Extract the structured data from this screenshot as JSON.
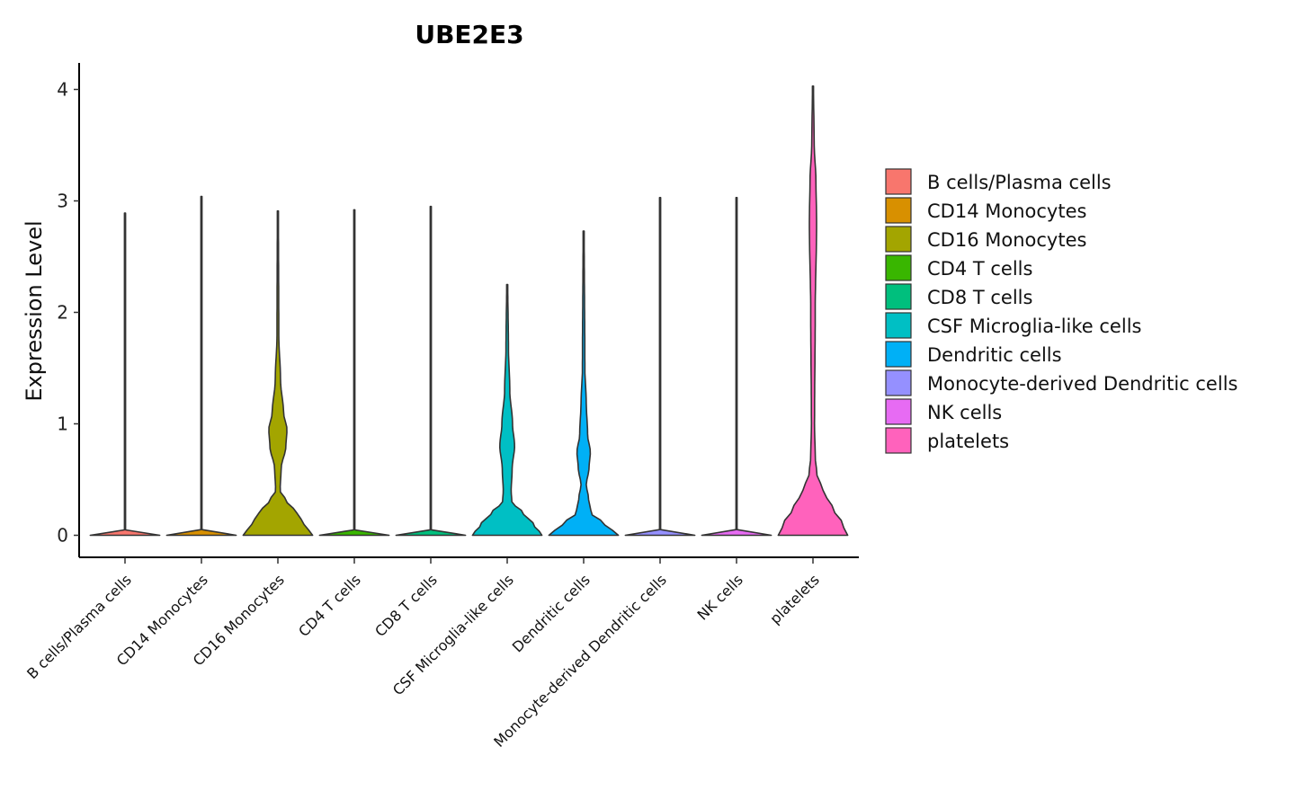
{
  "chart_data": {
    "type": "violin",
    "title": "UBE2E3",
    "xlabel": "",
    "ylabel": "Expression Level",
    "ylim": [
      -0.2,
      4.25
    ],
    "yticks": [
      0,
      1,
      2,
      3,
      4
    ],
    "grid": false,
    "legend_position": "right",
    "categories": [
      "B cells/Plasma cells",
      "CD14 Monocytes",
      "CD16 Monocytes",
      "CD4 T cells",
      "CD8 T cells",
      "CSF Microglia-like cells",
      "Dendritic cells",
      "Monocyte-derived Dendritic cells",
      "NK cells",
      "platelets"
    ],
    "colors": [
      "#F8766D",
      "#D89000",
      "#A3A500",
      "#39B600",
      "#00BF7D",
      "#00BFC4",
      "#00B0F6",
      "#9590FF",
      "#E76BF3",
      "#FF62BC"
    ],
    "max_values": [
      2.89,
      3.04,
      2.91,
      2.92,
      2.95,
      2.25,
      2.73,
      3.03,
      3.03,
      4.03
    ],
    "density_profiles": [
      [
        [
          0,
          1.0
        ],
        [
          0.02,
          0.0
        ],
        [
          2.89,
          0.0
        ]
      ],
      [
        [
          0,
          1.0
        ],
        [
          0.02,
          0.0
        ],
        [
          3.04,
          0.0
        ]
      ],
      [
        [
          0,
          1.0
        ],
        [
          0.1,
          0.75
        ],
        [
          0.2,
          0.55
        ],
        [
          0.3,
          0.25
        ],
        [
          0.4,
          0.05
        ],
        [
          0.6,
          0.08
        ],
        [
          0.8,
          0.22
        ],
        [
          0.95,
          0.25
        ],
        [
          1.1,
          0.15
        ],
        [
          1.4,
          0.06
        ],
        [
          1.8,
          0.01
        ],
        [
          2.91,
          0.0
        ]
      ],
      [
        [
          0,
          1.0
        ],
        [
          0.02,
          0.0
        ],
        [
          2.92,
          0.0
        ]
      ],
      [
        [
          0,
          1.0
        ],
        [
          0.02,
          0.0
        ],
        [
          2.95,
          0.0
        ]
      ],
      [
        [
          0,
          1.0
        ],
        [
          0.1,
          0.75
        ],
        [
          0.2,
          0.45
        ],
        [
          0.3,
          0.12
        ],
        [
          0.4,
          0.1
        ],
        [
          0.6,
          0.13
        ],
        [
          0.8,
          0.2
        ],
        [
          1.0,
          0.14
        ],
        [
          1.3,
          0.06
        ],
        [
          1.7,
          0.02
        ],
        [
          2.25,
          0.0
        ]
      ],
      [
        [
          0,
          1.0
        ],
        [
          0.1,
          0.6
        ],
        [
          0.2,
          0.2
        ],
        [
          0.35,
          0.12
        ],
        [
          0.45,
          0.06
        ],
        [
          0.6,
          0.14
        ],
        [
          0.75,
          0.18
        ],
        [
          0.9,
          0.1
        ],
        [
          1.2,
          0.06
        ],
        [
          1.5,
          0.02
        ],
        [
          2.73,
          0.0
        ]
      ],
      [
        [
          0,
          1.0
        ],
        [
          0.02,
          0.0
        ],
        [
          3.03,
          0.0
        ]
      ],
      [
        [
          0,
          1.0
        ],
        [
          0.02,
          0.0
        ],
        [
          3.03,
          0.0
        ]
      ],
      [
        [
          0,
          1.0
        ],
        [
          0.1,
          0.85
        ],
        [
          0.25,
          0.55
        ],
        [
          0.4,
          0.28
        ],
        [
          0.55,
          0.1
        ],
        [
          0.7,
          0.05
        ],
        [
          1.0,
          0.03
        ],
        [
          2.0,
          0.05
        ],
        [
          2.8,
          0.09
        ],
        [
          3.2,
          0.07
        ],
        [
          3.5,
          0.02
        ],
        [
          4.03,
          0.0
        ]
      ]
    ]
  },
  "legend": {
    "items": [
      "B cells/Plasma cells",
      "CD14 Monocytes",
      "CD16 Monocytes",
      "CD4 T cells",
      "CD8 T cells",
      "CSF Microglia-like cells",
      "Dendritic cells",
      "Monocyte-derived Dendritic cells",
      "NK cells",
      "platelets"
    ]
  }
}
